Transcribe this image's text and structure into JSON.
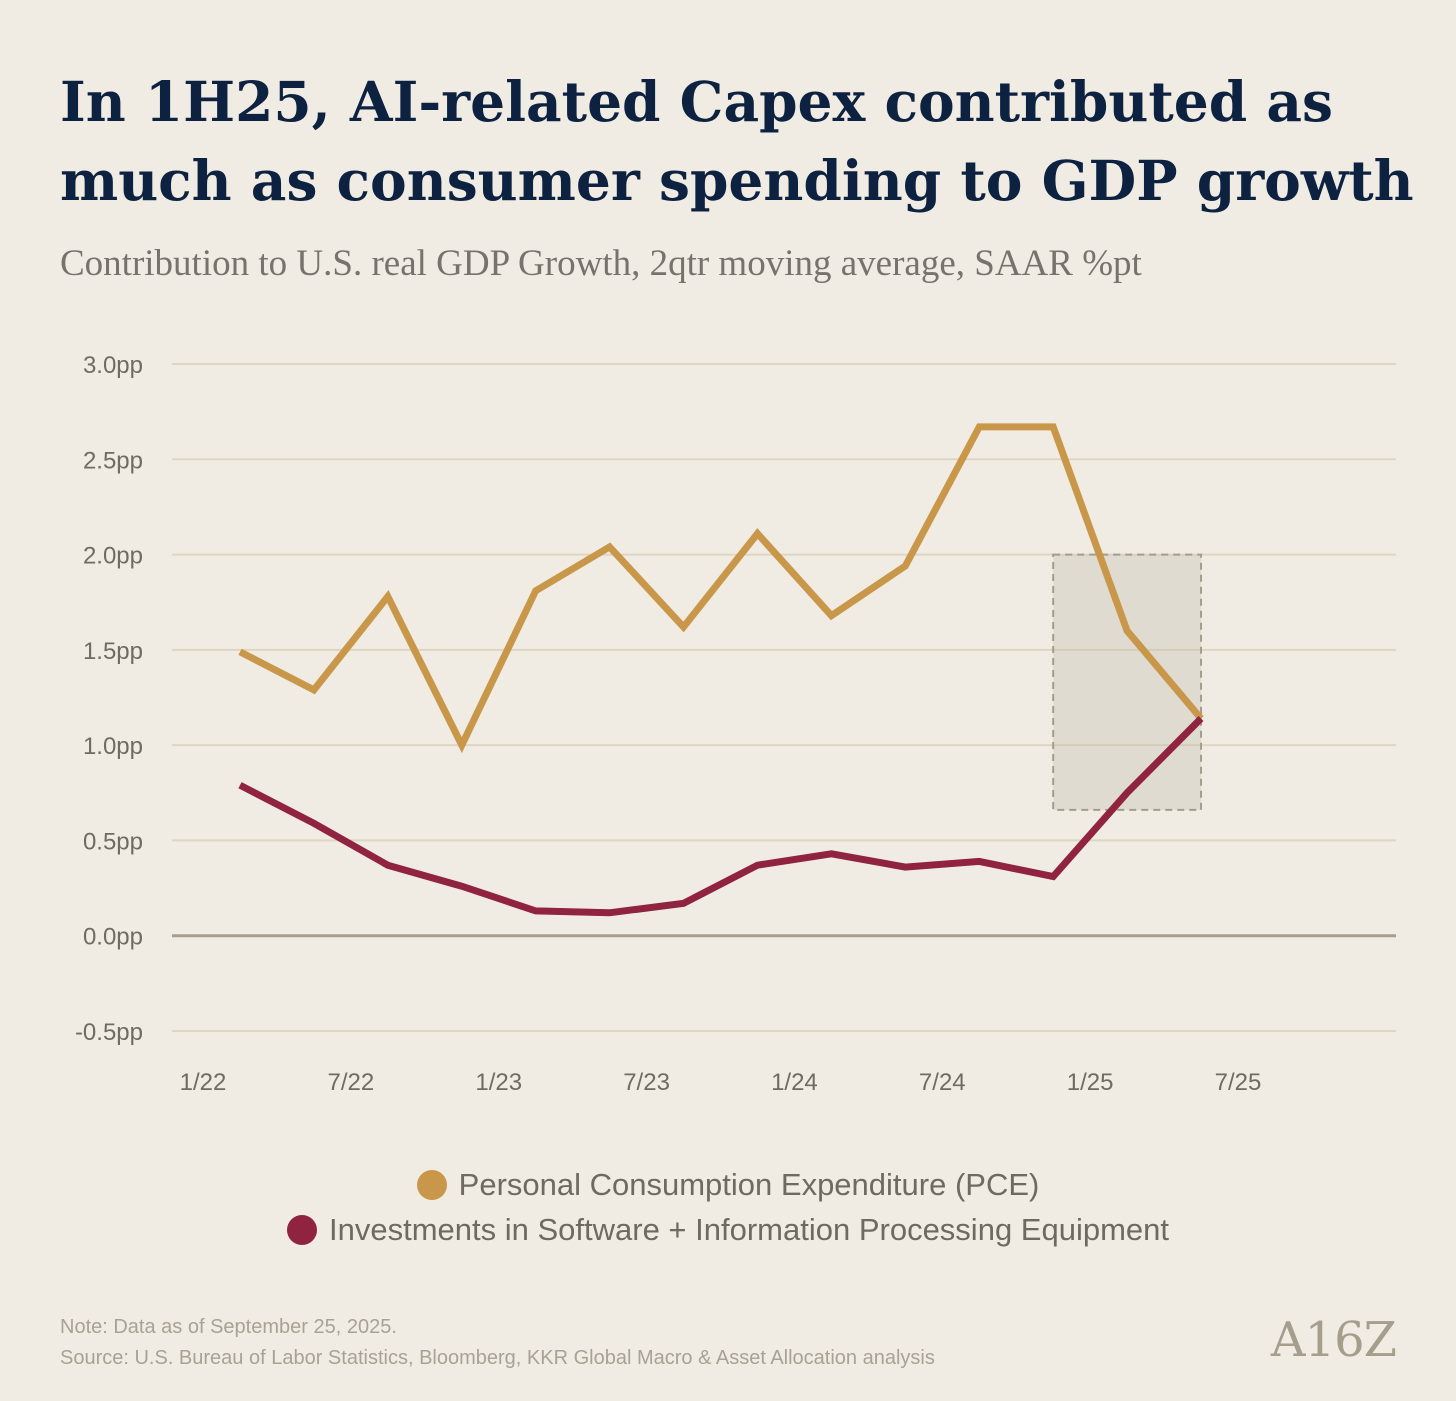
{
  "title": "In 1H25, AI-related Capex contributed as much as consumer spending to GDP growth",
  "subtitle": "Contribution to U.S. real GDP Growth, 2qtr moving average, SAAR %pt",
  "chart_data": {
    "type": "line",
    "title": "In 1H25, AI-related Capex contributed as much as consumer spending to GDP growth",
    "subtitle": "Contribution to U.S. real GDP Growth, 2qtr moving average, SAAR %pt",
    "xlabel": "",
    "ylabel": "",
    "x_tick_labels": [
      "1/22",
      "7/22",
      "1/23",
      "7/23",
      "1/24",
      "7/24",
      "1/25",
      "7/25"
    ],
    "y_ticks": [
      -0.5,
      0.0,
      0.5,
      1.0,
      1.5,
      2.0,
      2.5,
      3.0
    ],
    "y_tick_labels": [
      "-0.5pp",
      "0.0pp",
      "0.5pp",
      "1.0pp",
      "1.5pp",
      "2.0pp",
      "2.5pp",
      "3.0pp"
    ],
    "ylim": [
      -0.5,
      3.0
    ],
    "x_quarters": [
      "Q1 2022",
      "Q2 2022",
      "Q3 2022",
      "Q4 2022",
      "Q1 2023",
      "Q2 2023",
      "Q3 2023",
      "Q4 2023",
      "Q1 2024",
      "Q2 2024",
      "Q3 2024",
      "Q4 2024",
      "Q1 2025",
      "Q2 2025",
      "Q3 2025"
    ],
    "x_index": [
      0.5,
      1.5,
      2.5,
      3.5,
      4.5,
      5.5,
      6.5,
      7.5,
      8.5,
      9.5,
      10.5,
      11.5,
      12.5,
      13.5,
      14.5
    ],
    "series": [
      {
        "name": "Personal Consumption Expenditure (PCE)",
        "color": "#c9974a",
        "values": [
          1.49,
          1.29,
          1.78,
          1.0,
          1.81,
          2.04,
          1.62,
          2.11,
          1.68,
          1.94,
          2.67,
          2.67,
          1.6,
          1.14,
          null
        ]
      },
      {
        "name": "Investments in Software + Information Processing Equipment",
        "color": "#8f2340",
        "values": [
          0.79,
          0.59,
          0.37,
          0.26,
          0.13,
          0.12,
          0.17,
          0.37,
          0.43,
          0.36,
          0.39,
          0.31,
          0.75,
          1.14,
          null
        ]
      }
    ],
    "zero_line": true,
    "grid": true,
    "annotations": [
      {
        "type": "highlight-box",
        "style": "dashed",
        "x_range": [
          11.5,
          13.5
        ],
        "y_range": [
          0.66,
          2.0
        ]
      }
    ]
  },
  "legend": {
    "items": [
      {
        "label": "Personal Consumption Expenditure (PCE)",
        "color": "#c9974a"
      },
      {
        "label": "Investments in Software + Information Processing Equipment",
        "color": "#8f2340"
      }
    ]
  },
  "footer": {
    "note": "Note: Data as of September 25, 2025.",
    "source": "Source: U.S. Bureau of Labor Statistics, Bloomberg, KKR Global Macro & Asset Allocation analysis"
  },
  "brand": {
    "logo": "A16Z"
  }
}
